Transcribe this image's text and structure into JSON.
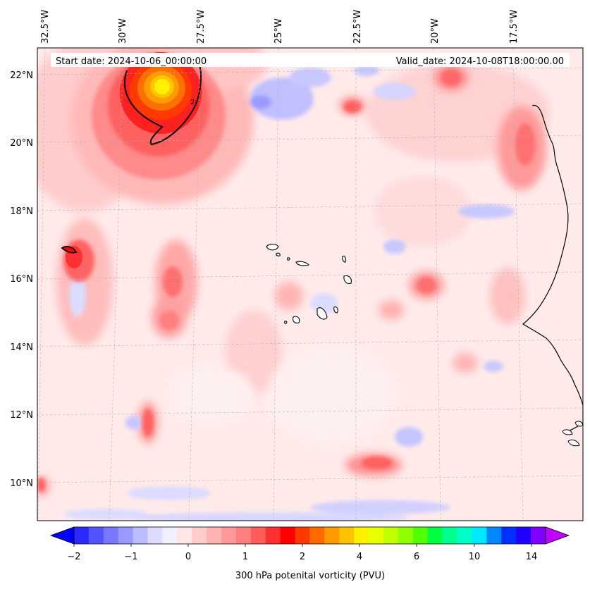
{
  "map": {
    "start_date_text": "Start date: 2024-10-06_00:00:00",
    "valid_date_text": "Valid_date: 2024-10-08T18:00:00.00",
    "lon_labels": [
      "32.5°W",
      "30°W",
      "27.5°W",
      "25°W",
      "22.5°W",
      "20°W",
      "17.5°W"
    ],
    "lat_labels": [
      "22°N",
      "20°N",
      "18°N",
      "16°N",
      "14°N",
      "12°N",
      "10°N"
    ],
    "contour_label": "2"
  },
  "colorbar": {
    "label": "300 hPa potenital vorticity (PVU)",
    "tick_labels": [
      "−2",
      "−1",
      "0",
      "1",
      "2",
      "4",
      "6",
      "10",
      "14"
    ],
    "colors": [
      "#0000ff",
      "#2a2aff",
      "#5454ff",
      "#7777ff",
      "#9999ff",
      "#bbbbff",
      "#dcdcff",
      "#f0f0ff",
      "#ffe6e6",
      "#ffcccc",
      "#ffb3b3",
      "#ff9999",
      "#ff7f7f",
      "#ff5c5c",
      "#ff3030",
      "#ff0000",
      "#ff3800",
      "#ff6a00",
      "#ff9a00",
      "#ffc400",
      "#fff000",
      "#e8ff00",
      "#c0ff00",
      "#90ff00",
      "#50ff00",
      "#00ff40",
      "#00ff90",
      "#00ffc8",
      "#00e8ff",
      "#0088ff",
      "#0030ff",
      "#2000ff",
      "#8000ff",
      "#c000ff"
    ]
  }
}
